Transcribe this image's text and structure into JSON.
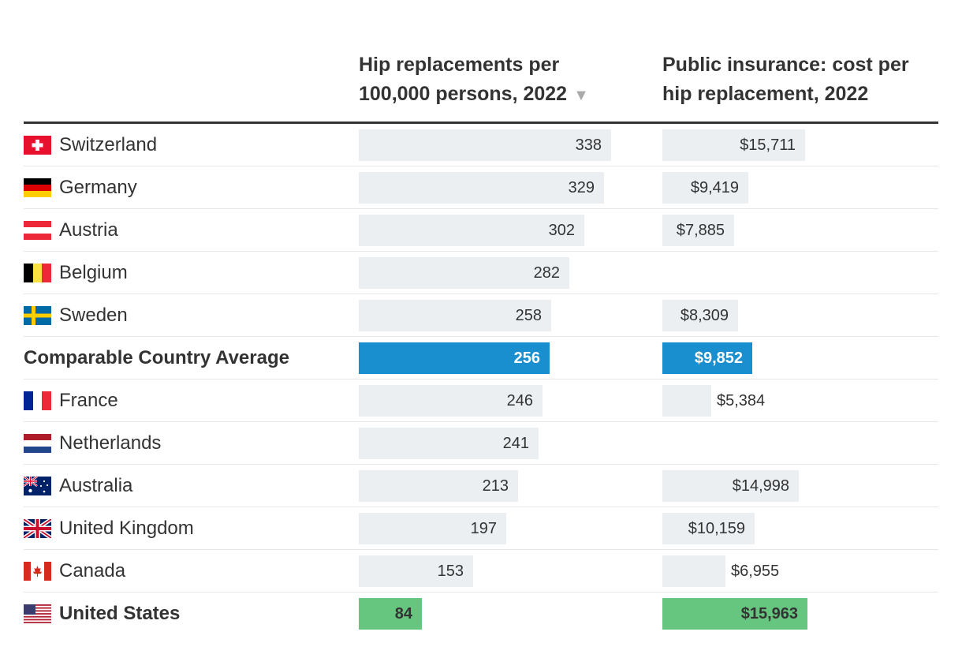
{
  "columns": {
    "hip": {
      "line1": "Hip replacements per",
      "line2": "100,000 persons, 2022",
      "sort_icon": "sort-down-icon"
    },
    "cost": {
      "line1": "Public insurance: cost per",
      "line2": "hip replacement, 2022"
    }
  },
  "colors": {
    "bar": "#ebeff2",
    "average": "#1a8fcf",
    "us": "#66c57e"
  },
  "chart_data": {
    "type": "table",
    "sorted_by": "Hip replacements per 100,000 persons, 2022",
    "sort_order": "descending",
    "rows": [
      {
        "country": "Switzerland",
        "flag": "switzerland",
        "hip": 338,
        "hip_label": "338",
        "cost": 15711,
        "cost_label": "$15,711",
        "kind": "normal"
      },
      {
        "country": "Germany",
        "flag": "germany",
        "hip": 329,
        "hip_label": "329",
        "cost": 9419,
        "cost_label": "$9,419",
        "kind": "normal"
      },
      {
        "country": "Austria",
        "flag": "austria",
        "hip": 302,
        "hip_label": "302",
        "cost": 7885,
        "cost_label": "$7,885",
        "kind": "normal"
      },
      {
        "country": "Belgium",
        "flag": "belgium",
        "hip": 282,
        "hip_label": "282",
        "cost": null,
        "cost_label": null,
        "kind": "normal"
      },
      {
        "country": "Sweden",
        "flag": "sweden",
        "hip": 258,
        "hip_label": "258",
        "cost": 8309,
        "cost_label": "$8,309",
        "kind": "normal"
      },
      {
        "country": "Comparable Country Average",
        "flag": null,
        "hip": 256,
        "hip_label": "256",
        "cost": 9852,
        "cost_label": "$9,852",
        "kind": "average"
      },
      {
        "country": "France",
        "flag": "france",
        "hip": 246,
        "hip_label": "246",
        "cost": 5384,
        "cost_label": "$5,384",
        "kind": "normal"
      },
      {
        "country": "Netherlands",
        "flag": "netherlands",
        "hip": 241,
        "hip_label": "241",
        "cost": null,
        "cost_label": null,
        "kind": "normal"
      },
      {
        "country": "Australia",
        "flag": "australia",
        "hip": 213,
        "hip_label": "213",
        "cost": 14998,
        "cost_label": "$14,998",
        "kind": "normal"
      },
      {
        "country": "United Kingdom",
        "flag": "uk",
        "hip": 197,
        "hip_label": "197",
        "cost": 10159,
        "cost_label": "$10,159",
        "kind": "normal"
      },
      {
        "country": "Canada",
        "flag": "canada",
        "hip": 153,
        "hip_label": "153",
        "cost": 6955,
        "cost_label": "$6,955",
        "kind": "normal"
      },
      {
        "country": "United States",
        "flag": "us",
        "hip": 84,
        "hip_label": "84",
        "cost": 15963,
        "cost_label": "$15,963",
        "kind": "us"
      }
    ]
  }
}
